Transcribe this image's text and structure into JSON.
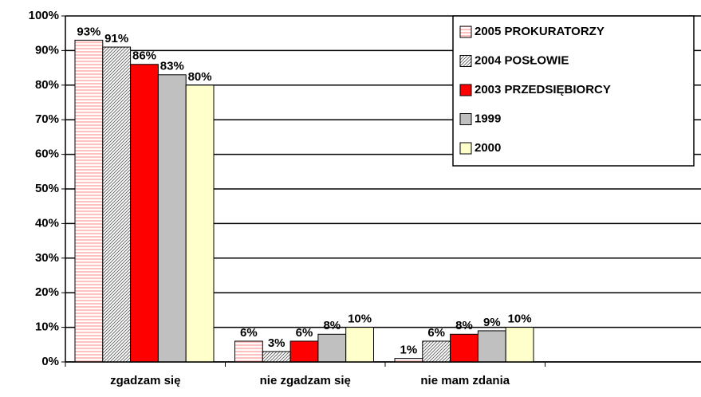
{
  "chart_data": {
    "type": "bar",
    "categories": [
      "zgadzam się",
      "nie zgadzam się",
      "nie mam zdania",
      null
    ],
    "series": [
      {
        "name": "2005 PROKURATORZY",
        "color": "#ffc0c0",
        "pattern": "horizontal",
        "values": [
          93,
          6,
          1,
          null
        ],
        "value_labels": [
          "93%",
          "6%",
          "1%",
          null
        ]
      },
      {
        "name": "2004 POSŁOWIE",
        "color": "#ffffff",
        "pattern": "diagonal",
        "values": [
          91,
          3,
          6,
          null
        ],
        "value_labels": [
          "91%",
          "3%",
          "6%",
          null
        ]
      },
      {
        "name": "2003 PRZEDSIĘBIORCY",
        "color": "#ff0000",
        "pattern": "solid",
        "values": [
          86,
          6,
          8,
          null
        ],
        "value_labels": [
          "86%",
          "6%",
          "8%",
          null
        ]
      },
      {
        "name": "1999",
        "color": "#c0c0c0",
        "pattern": "solid",
        "values": [
          83,
          8,
          9,
          null
        ],
        "value_labels": [
          "83%",
          "8%",
          "9%",
          null
        ]
      },
      {
        "name": "2000",
        "color": "#ffffcc",
        "pattern": "solid",
        "values": [
          80,
          10,
          10,
          null
        ],
        "value_labels": [
          "80%",
          "10%",
          "10%",
          null
        ]
      }
    ],
    "ylim": [
      0,
      100
    ],
    "yticks": [
      {
        "value": 0,
        "label": "0%"
      },
      {
        "value": 10,
        "label": "10%"
      },
      {
        "value": 20,
        "label": "20%"
      },
      {
        "value": 30,
        "label": "30%"
      },
      {
        "value": 40,
        "label": "40%"
      },
      {
        "value": 50,
        "label": "50%"
      },
      {
        "value": 60,
        "label": "60%"
      },
      {
        "value": 70,
        "label": "70%"
      },
      {
        "value": 80,
        "label": "80%"
      },
      {
        "value": 90,
        "label": "90%"
      },
      {
        "value": 100,
        "label": "100%"
      }
    ],
    "grid": true,
    "legend": "top-right"
  }
}
